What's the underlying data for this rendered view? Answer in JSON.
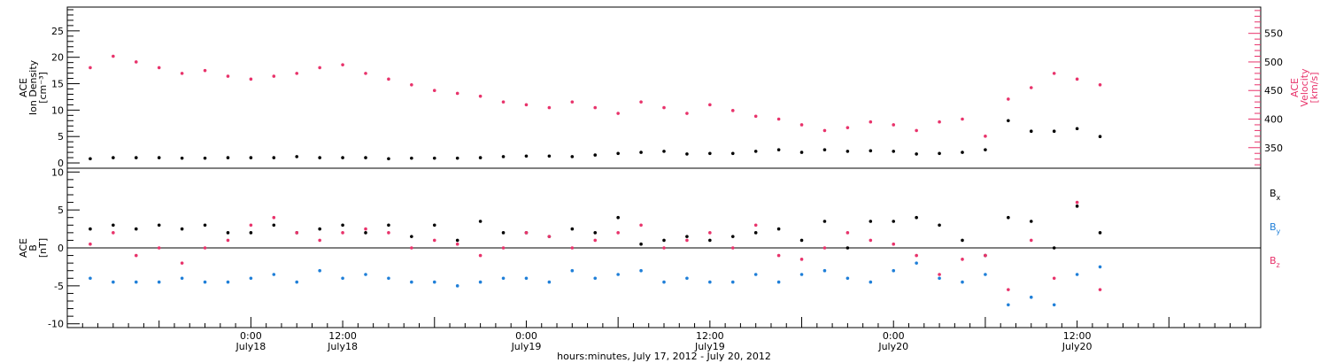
{
  "colors": {
    "density": "#000000",
    "velocity": "#e8336b",
    "bx": "#000000",
    "by": "#1f7fd8",
    "bz": "#e8336b",
    "axes": "#000000"
  },
  "chart_data": [
    {
      "type": "scatter",
      "panel": "top",
      "left_axis": {
        "title_lines": [
          "ACE",
          "Ion Density",
          "[cm⁻³]"
        ],
        "ylim": [
          -1,
          29.5
        ],
        "ticks": [
          0,
          5,
          10,
          15,
          20,
          25
        ],
        "tick_labels": [
          "0",
          "5",
          "10",
          "15",
          "20",
          "25"
        ]
      },
      "right_axis": {
        "title_lines": [
          "ACE",
          "Velocity",
          "[km/s]"
        ],
        "ylim": [
          314,
          596
        ],
        "ticks": [
          350,
          400,
          450,
          500,
          550
        ],
        "tick_labels": [
          "350",
          "400",
          "450",
          "500",
          "550"
        ]
      },
      "series": [
        {
          "name": "",
          "axis": "left",
          "color": "density",
          "x_hours": [
            -21,
            -18,
            -15,
            -12,
            -9,
            -6,
            -3,
            0,
            3,
            6,
            9,
            12,
            15,
            18,
            21,
            24,
            27,
            30,
            33,
            36,
            39,
            42,
            45,
            48,
            51,
            54,
            57,
            60,
            63,
            66,
            69,
            72,
            75,
            78,
            81,
            84,
            87,
            90,
            93,
            96,
            99,
            102,
            105,
            108,
            111
          ],
          "y": [
            0.8,
            1.0,
            1.0,
            1.0,
            0.9,
            0.9,
            1.0,
            1.0,
            1.0,
            1.2,
            1.0,
            1.0,
            1.0,
            0.8,
            0.9,
            0.9,
            0.9,
            1.0,
            1.2,
            1.3,
            1.3,
            1.2,
            1.5,
            1.8,
            2.0,
            2.2,
            1.7,
            1.8,
            1.8,
            2.2,
            2.5,
            2.0,
            2.5,
            2.2,
            2.3,
            2.2,
            1.7,
            1.8,
            2.0,
            2.5,
            8.0,
            6.0,
            6.0,
            6.5,
            5.0
          ]
        },
        {
          "name": "",
          "axis": "right",
          "color": "velocity",
          "x_hours": [
            -21,
            -18,
            -15,
            -12,
            -9,
            -6,
            -3,
            0,
            3,
            6,
            9,
            12,
            15,
            18,
            21,
            24,
            27,
            30,
            33,
            36,
            39,
            42,
            45,
            48,
            51,
            54,
            57,
            60,
            63,
            66,
            69,
            72,
            75,
            78,
            81,
            84,
            87,
            90,
            93,
            96,
            99,
            102,
            105,
            108,
            111
          ],
          "y": [
            490,
            510,
            500,
            490,
            480,
            485,
            475,
            470,
            475,
            480,
            490,
            495,
            480,
            470,
            460,
            450,
            445,
            440,
            430,
            425,
            420,
            430,
            420,
            410,
            430,
            420,
            410,
            425,
            415,
            405,
            400,
            390,
            380,
            385,
            395,
            390,
            380,
            395,
            400,
            370,
            435,
            455,
            480,
            470,
            460
          ]
        }
      ]
    },
    {
      "type": "scatter",
      "panel": "bottom",
      "left_axis": {
        "title_lines": [
          "ACE",
          "B",
          "[nT]"
        ],
        "ylim": [
          -10.5,
          10.5
        ],
        "ticks": [
          -10,
          -5,
          0,
          5,
          10
        ],
        "tick_labels": [
          "-10",
          "-5",
          "0",
          "5",
          "10"
        ]
      },
      "x_axis": {
        "xlim_hours": [
          -24,
          132
        ],
        "major_ticks_hours": [
          0,
          24,
          48,
          72,
          96,
          120
        ],
        "tick_labels_time": [
          "0:00",
          "12:00",
          "0:00",
          "12:00",
          "0:00",
          "12:00"
        ],
        "tick_labels_day": [
          "July18",
          "July18",
          "July19",
          "July19",
          "July20",
          "July20"
        ],
        "tick_hours": [
          0,
          12,
          36,
          60,
          84,
          108
        ],
        "title": "hours:minutes, July 17, 2012 - July 20, 2012"
      },
      "legend": [
        {
          "label": "Bx",
          "base": "B",
          "sub": "x",
          "color": "bx"
        },
        {
          "label": "By",
          "base": "B",
          "sub": "y",
          "color": "by"
        },
        {
          "label": "Bz",
          "base": "B",
          "sub": "z",
          "color": "bz"
        }
      ],
      "series": [
        {
          "name": "Bx",
          "color": "bx",
          "x_hours": [
            -21,
            -18,
            -15,
            -12,
            -9,
            -6,
            -3,
            0,
            3,
            6,
            9,
            12,
            15,
            18,
            21,
            24,
            27,
            30,
            33,
            36,
            39,
            42,
            45,
            48,
            51,
            54,
            57,
            60,
            63,
            66,
            69,
            72,
            75,
            78,
            81,
            84,
            87,
            90,
            93,
            96,
            99,
            102,
            105,
            108,
            111
          ],
          "y": [
            2.5,
            3.0,
            2.5,
            3.0,
            2.5,
            3.0,
            2.0,
            2.0,
            3.0,
            2.0,
            2.5,
            3.0,
            2.0,
            3.0,
            1.5,
            3.0,
            1.0,
            3.5,
            2.0,
            2.0,
            1.5,
            2.5,
            2.0,
            4.0,
            0.5,
            1.0,
            1.5,
            1.0,
            1.5,
            2.0,
            2.5,
            1.0,
            3.5,
            0.0,
            3.5,
            3.5,
            4.0,
            3.0,
            1.0,
            -1.0,
            4.0,
            3.5,
            0.0,
            5.5,
            2.0
          ]
        },
        {
          "name": "By",
          "color": "by",
          "x_hours": [
            -21,
            -18,
            -15,
            -12,
            -9,
            -6,
            -3,
            0,
            3,
            6,
            9,
            12,
            15,
            18,
            21,
            24,
            27,
            30,
            33,
            36,
            39,
            42,
            45,
            48,
            51,
            54,
            57,
            60,
            63,
            66,
            69,
            72,
            75,
            78,
            81,
            84,
            87,
            90,
            93,
            96,
            99,
            102,
            105,
            108,
            111
          ],
          "y": [
            -4.0,
            -4.5,
            -4.5,
            -4.5,
            -4.0,
            -4.5,
            -4.5,
            -4.0,
            -3.5,
            -4.5,
            -3.0,
            -4.0,
            -3.5,
            -4.0,
            -4.5,
            -4.5,
            -5.0,
            -4.5,
            -4.0,
            -4.0,
            -4.5,
            -3.0,
            -4.0,
            -3.5,
            -3.0,
            -4.5,
            -4.0,
            -4.5,
            -4.5,
            -3.5,
            -4.5,
            -3.5,
            -3.0,
            -4.0,
            -4.5,
            -3.0,
            -2.0,
            -4.0,
            -4.5,
            -3.5,
            -7.5,
            -6.5,
            -7.5,
            -3.5,
            -2.5
          ]
        },
        {
          "name": "Bz",
          "color": "bz",
          "x_hours": [
            -21,
            -18,
            -15,
            -12,
            -9,
            -6,
            -3,
            0,
            3,
            6,
            9,
            12,
            15,
            18,
            21,
            24,
            27,
            30,
            33,
            36,
            39,
            42,
            45,
            48,
            51,
            54,
            57,
            60,
            63,
            66,
            69,
            72,
            75,
            78,
            81,
            84,
            87,
            90,
            93,
            96,
            99,
            102,
            105,
            108,
            111
          ],
          "y": [
            0.5,
            2.0,
            -1.0,
            0.0,
            -2.0,
            0.0,
            1.0,
            3.0,
            4.0,
            2.0,
            1.0,
            2.0,
            2.5,
            2.0,
            0.0,
            1.0,
            0.5,
            -1.0,
            0.0,
            2.0,
            1.5,
            0.0,
            1.0,
            2.0,
            3.0,
            0.0,
            1.0,
            2.0,
            0.0,
            3.0,
            -1.0,
            -1.5,
            0.0,
            2.0,
            1.0,
            0.5,
            -1.0,
            -3.5,
            -1.5,
            -1.0,
            -5.5,
            1.0,
            -4.0,
            6.0,
            -5.5
          ]
        }
      ]
    }
  ]
}
